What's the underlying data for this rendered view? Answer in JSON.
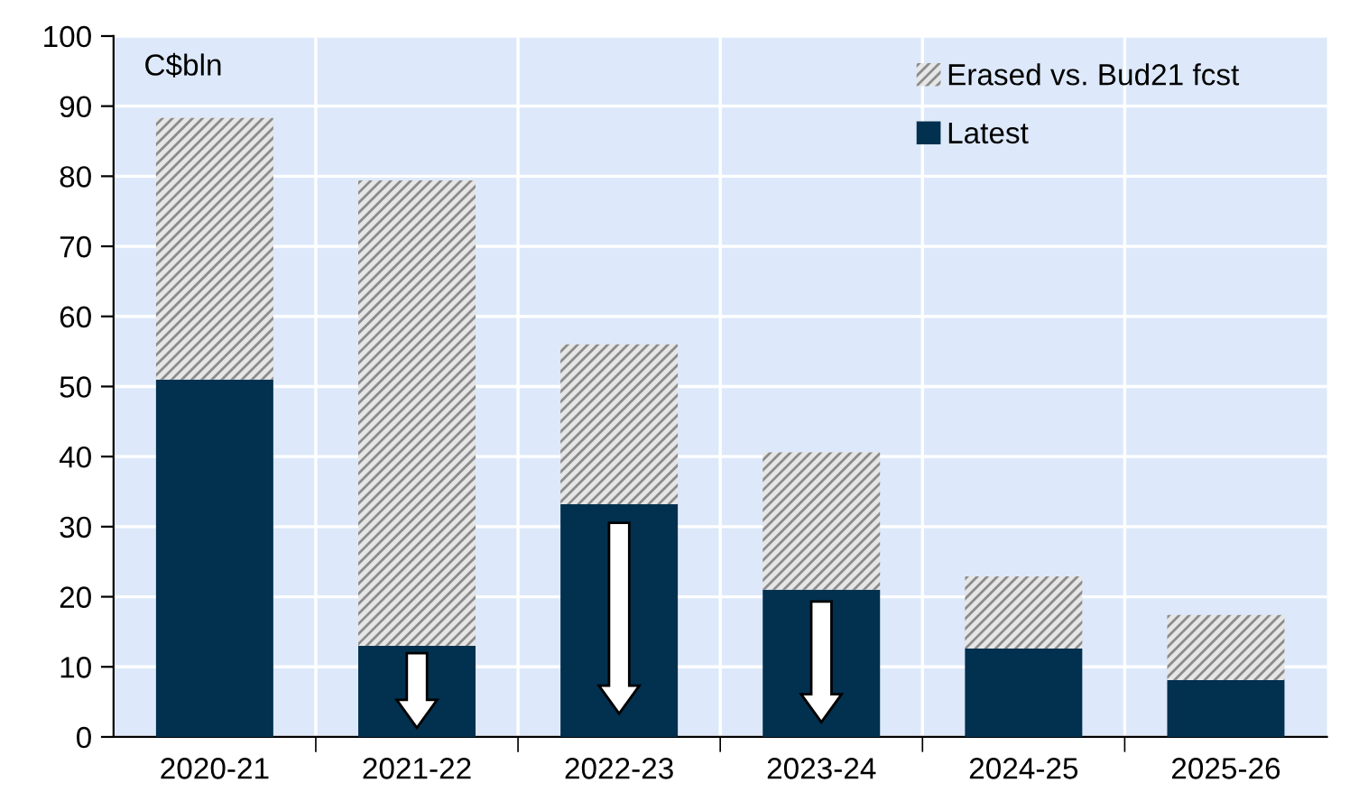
{
  "chart_data": {
    "type": "bar",
    "stacked": true,
    "ylabel": "C$bln",
    "categories": [
      "2020-21",
      "2021-22",
      "2022-23",
      "2023-24",
      "2024-25",
      "2025-26"
    ],
    "series": [
      {
        "name": "Latest",
        "color": "#02304f",
        "values": [
          51.0,
          13.0,
          33.2,
          21.0,
          12.6,
          8.1
        ]
      },
      {
        "name": "Erased vs. Bud21 fcst",
        "color": "#e6e6e6",
        "values": [
          37.3,
          66.4,
          22.8,
          19.6,
          10.3,
          9.3
        ]
      }
    ],
    "ylim": [
      0,
      100
    ],
    "yticks": [
      0,
      10,
      20,
      30,
      40,
      50,
      60,
      70,
      80,
      90,
      100
    ],
    "grid": true,
    "legend": "top right"
  }
}
